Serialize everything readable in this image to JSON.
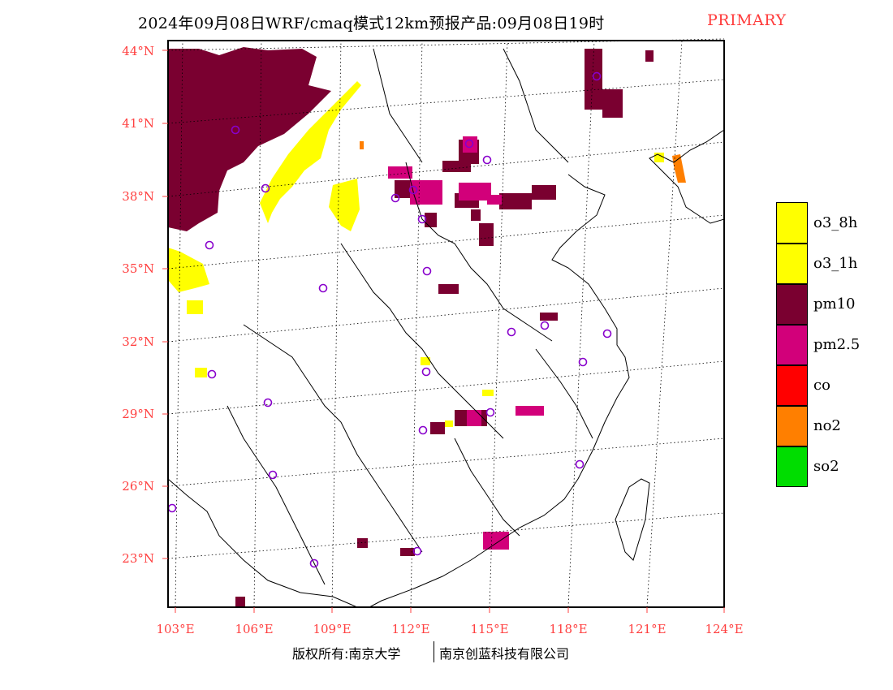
{
  "title": {
    "main": "2024年09月08日WRF/cmaq模式12km预报产品:09月08日19时",
    "tag": "PRIMARY"
  },
  "axes": {
    "lat_labels": [
      "44°N",
      "41°N",
      "38°N",
      "35°N",
      "32°N",
      "29°N",
      "26°N",
      "23°N"
    ],
    "lon_labels": [
      "103°E",
      "106°E",
      "109°E",
      "112°E",
      "115°E",
      "118°E",
      "121°E",
      "124°E"
    ]
  },
  "legend": [
    {
      "label": "o3_8h",
      "color": "#ffff00"
    },
    {
      "label": "o3_1h",
      "color": "#ffff00"
    },
    {
      "label": "pm10",
      "color": "#7a0030"
    },
    {
      "label": "pm2.5",
      "color": "#d2007a"
    },
    {
      "label": "co",
      "color": "#ff0000"
    },
    {
      "label": "no2",
      "color": "#ff7f00"
    },
    {
      "label": "so2",
      "color": "#00dd00"
    }
  ],
  "footer": {
    "left": "版权所有:南京大学",
    "right": "南京创蓝科技有限公司"
  },
  "colors": {
    "pm10": "#7a0030",
    "pm25": "#d2007a",
    "o3": "#ffff00",
    "no2": "#ff7f00",
    "station": "#8800cc",
    "label": "#ff4040",
    "tag": "#ff3b3b"
  }
}
